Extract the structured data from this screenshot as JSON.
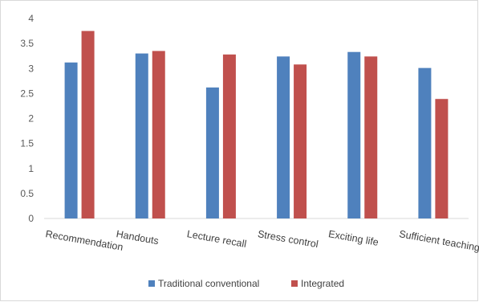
{
  "chart_data": {
    "type": "bar",
    "categories": [
      "Recommendation",
      "Handouts",
      "Lecture recall",
      "Stress control",
      "Exciting life",
      "Sufficient teaching hours"
    ],
    "series": [
      {
        "name": "Traditional  conventional",
        "values": [
          3.12,
          3.3,
          2.62,
          3.24,
          3.33,
          3.01
        ],
        "color": "#4f81bd"
      },
      {
        "name": "Integrated",
        "values": [
          3.75,
          3.35,
          3.28,
          3.08,
          3.24,
          2.39
        ],
        "color": "#c0504d"
      }
    ],
    "yticks": [
      "0",
      "0.5",
      "1",
      "1.5",
      "2",
      "2.5",
      "3",
      "3.5",
      "4"
    ],
    "ylim": [
      0,
      4
    ],
    "grid": false,
    "legend_position": "bottom"
  }
}
